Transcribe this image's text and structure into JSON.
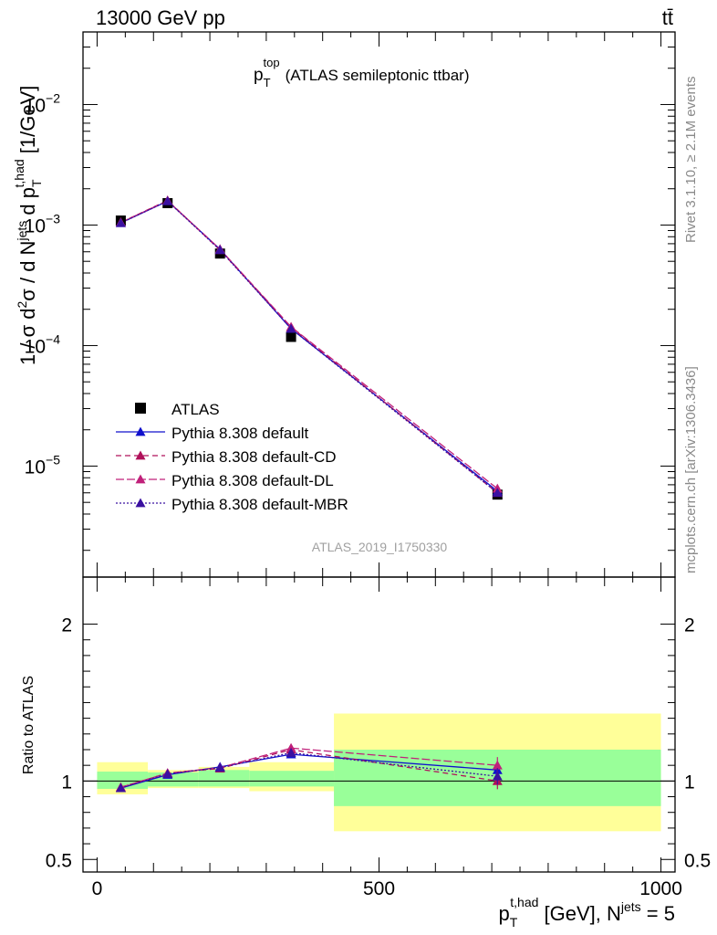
{
  "header": {
    "left": "13000 GeV pp",
    "right": "tt̄"
  },
  "side_labels": {
    "rivet": "Rivet 3.1.10, ≥ 2.1M events",
    "mcplots": "mcplots.cern.ch [arXiv:1306.3436]"
  },
  "colors": {
    "data": "#000000",
    "default": "#1010cc",
    "cd": "#b0105a",
    "dl": "#c0207a",
    "mbr": "#3a10a0",
    "band_inner": "#99ff99",
    "band_outer": "#ffff99"
  },
  "chart_data": {
    "type": "line",
    "title_main": "p",
    "title_sup": "top",
    "title_sub": "T",
    "title_rest": "(ATLAS semileptonic ttbar)",
    "watermark": "ATLAS_2019_I1750330",
    "ylabel": "1 / σ d²σ / d N^jets d p_T^t,had [1/GeV]",
    "ylabel_parts": {
      "a": "1 / σ d",
      "a_sup": "2",
      "b": "σ / d N",
      "b_sup": "jets",
      "c": " d p",
      "c_sub": "T",
      "c_sup": "t,had",
      "d": " [1/GeV]"
    },
    "xlabel_parts": {
      "a": "p",
      "a_sub": "T",
      "a_sup": "t,had",
      "b": " [GeV], N",
      "b_sup": "jets",
      "c": " = 5"
    },
    "ratio_ylabel": "Ratio to ATLAS",
    "xlim": [
      -25,
      1025
    ],
    "ylim": [
      1.2e-06,
      0.04
    ],
    "ylog": true,
    "ratio_ylim": [
      0.42,
      2.3
    ],
    "x_ticks": [
      {
        "v": 0,
        "label": "0"
      },
      {
        "v": 500,
        "label": "500"
      },
      {
        "v": 1000,
        "label": "1000"
      }
    ],
    "y_ticks": [
      {
        "v": 1e-05,
        "base": "10",
        "exp": "−5"
      },
      {
        "v": 0.0001,
        "base": "10",
        "exp": "−4"
      },
      {
        "v": 0.001,
        "base": "10",
        "exp": "−3"
      },
      {
        "v": 0.01,
        "base": "10",
        "exp": "−2"
      }
    ],
    "ratio_ticks": [
      {
        "v": 0.5,
        "label": "0.5"
      },
      {
        "v": 1,
        "label": "1"
      },
      {
        "v": 2,
        "label": "2"
      }
    ],
    "bins": [
      {
        "lo": 0,
        "hi": 90,
        "inner": [
          0.95,
          1.06
        ],
        "outer": [
          0.915,
          1.12
        ]
      },
      {
        "lo": 90,
        "hi": 180,
        "inner": [
          0.965,
          1.055
        ],
        "outer": [
          0.955,
          1.07
        ]
      },
      {
        "lo": 180,
        "hi": 270,
        "inner": [
          0.965,
          1.07
        ],
        "outer": [
          0.955,
          1.09
        ]
      },
      {
        "lo": 270,
        "hi": 420,
        "inner": [
          0.965,
          1.065
        ],
        "outer": [
          0.935,
          1.12
        ]
      },
      {
        "lo": 420,
        "hi": 1000,
        "inner": [
          0.84,
          1.2
        ],
        "outer": [
          0.68,
          1.43
        ]
      }
    ],
    "data": {
      "name": "ATLAS",
      "x": [
        42,
        125,
        218,
        344,
        710
      ],
      "y": [
        0.00109,
        0.00152,
        0.00058,
        0.000118,
        5.8e-06
      ]
    },
    "series": [
      {
        "key": "default",
        "name": "Pythia 8.308 default",
        "dash": "",
        "x": [
          42,
          125,
          218,
          344,
          710
        ],
        "y": [
          0.00104,
          0.00158,
          0.00063,
          0.000138,
          6.2e-06
        ],
        "ratio": [
          0.955,
          1.04,
          1.09,
          1.17,
          1.07
        ]
      },
      {
        "key": "cd",
        "name": "Pythia 8.308 default-CD",
        "dash": "6,4",
        "x": [
          42,
          125,
          218,
          344,
          710
        ],
        "y": [
          0.00105,
          0.0016,
          0.00062,
          0.000142,
          6e-06
        ],
        "ratio": [
          0.96,
          1.05,
          1.08,
          1.2,
          1.0
        ]
      },
      {
        "key": "dl",
        "name": "Pythia 8.308 default-DL",
        "dash": "9,3",
        "x": [
          42,
          125,
          218,
          344,
          710
        ],
        "y": [
          0.00105,
          0.00159,
          0.00063,
          0.000143,
          6.5e-06
        ],
        "ratio": [
          0.96,
          1.05,
          1.085,
          1.21,
          1.1
        ]
      },
      {
        "key": "mbr",
        "name": "Pythia 8.308 default-MBR",
        "dash": "2,2",
        "x": [
          42,
          125,
          218,
          344,
          710
        ],
        "y": [
          0.00104,
          0.00158,
          0.00062,
          0.000138,
          6e-06
        ],
        "ratio": [
          0.955,
          1.045,
          1.085,
          1.18,
          1.03
        ]
      }
    ],
    "legend_position": "bottom-left"
  }
}
